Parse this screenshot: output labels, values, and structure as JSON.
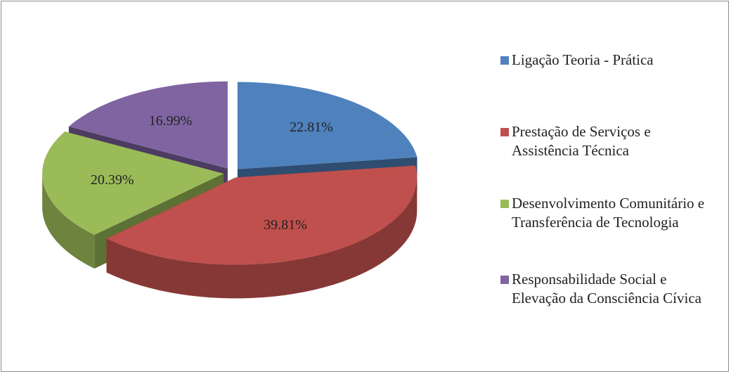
{
  "chart_data": {
    "type": "pie",
    "categories": [
      "Ligação Teoria - Prática",
      "Prestação de Serviços e Assistência Técnica",
      "Desenvolvimento Comunitário e Transferência de Tecnologia",
      "Responsabilidade Social e Elevação da Consciência Cívica"
    ],
    "values": [
      22.81,
      39.81,
      20.39,
      16.99
    ],
    "value_labels": [
      "22.81%",
      "39.81%",
      "20.39%",
      "16.99%"
    ],
    "colors": [
      "#4f81bd",
      "#c0504d",
      "#9bbb59",
      "#8064a2"
    ],
    "legend": "right"
  }
}
